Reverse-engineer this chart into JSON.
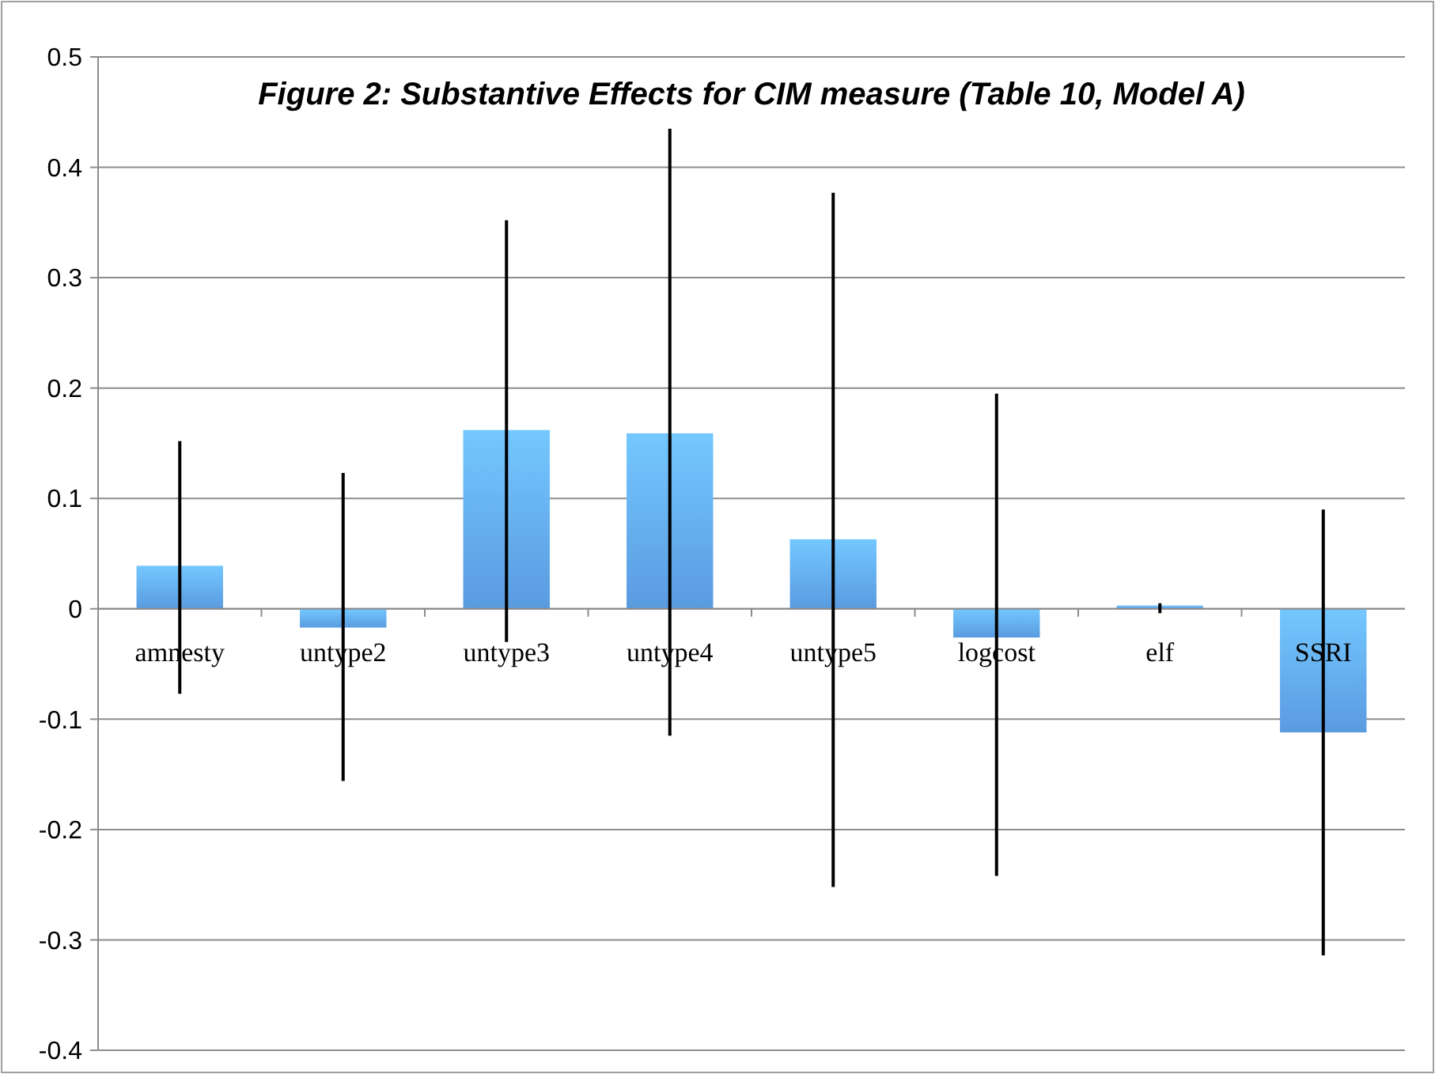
{
  "chart_data": {
    "type": "bar",
    "title": "Figure 2: Substantive Effects for CIM measure (Table 10, Model A)",
    "categories": [
      "amnesty",
      "untype2",
      "untype3",
      "untype4",
      "untype5",
      "logcost",
      "elf",
      "SSRI"
    ],
    "values": [
      0.039,
      -0.017,
      0.162,
      0.159,
      0.063,
      -0.026,
      0.003,
      -0.112
    ],
    "errors": [
      [
        -0.077,
        0.152
      ],
      [
        -0.156,
        0.123
      ],
      [
        -0.03,
        0.352
      ],
      [
        -0.115,
        0.435
      ],
      [
        -0.252,
        0.377
      ],
      [
        -0.242,
        0.195
      ],
      [
        -0.004,
        0.005
      ],
      [
        -0.314,
        0.09
      ]
    ],
    "color": "#5a9be0",
    "ylim": [
      -0.4,
      0.5
    ],
    "yticks": [
      -0.4,
      -0.3,
      -0.2,
      -0.1,
      0,
      0.1,
      0.2,
      0.3,
      0.4,
      0.5
    ],
    "grid": "y"
  }
}
